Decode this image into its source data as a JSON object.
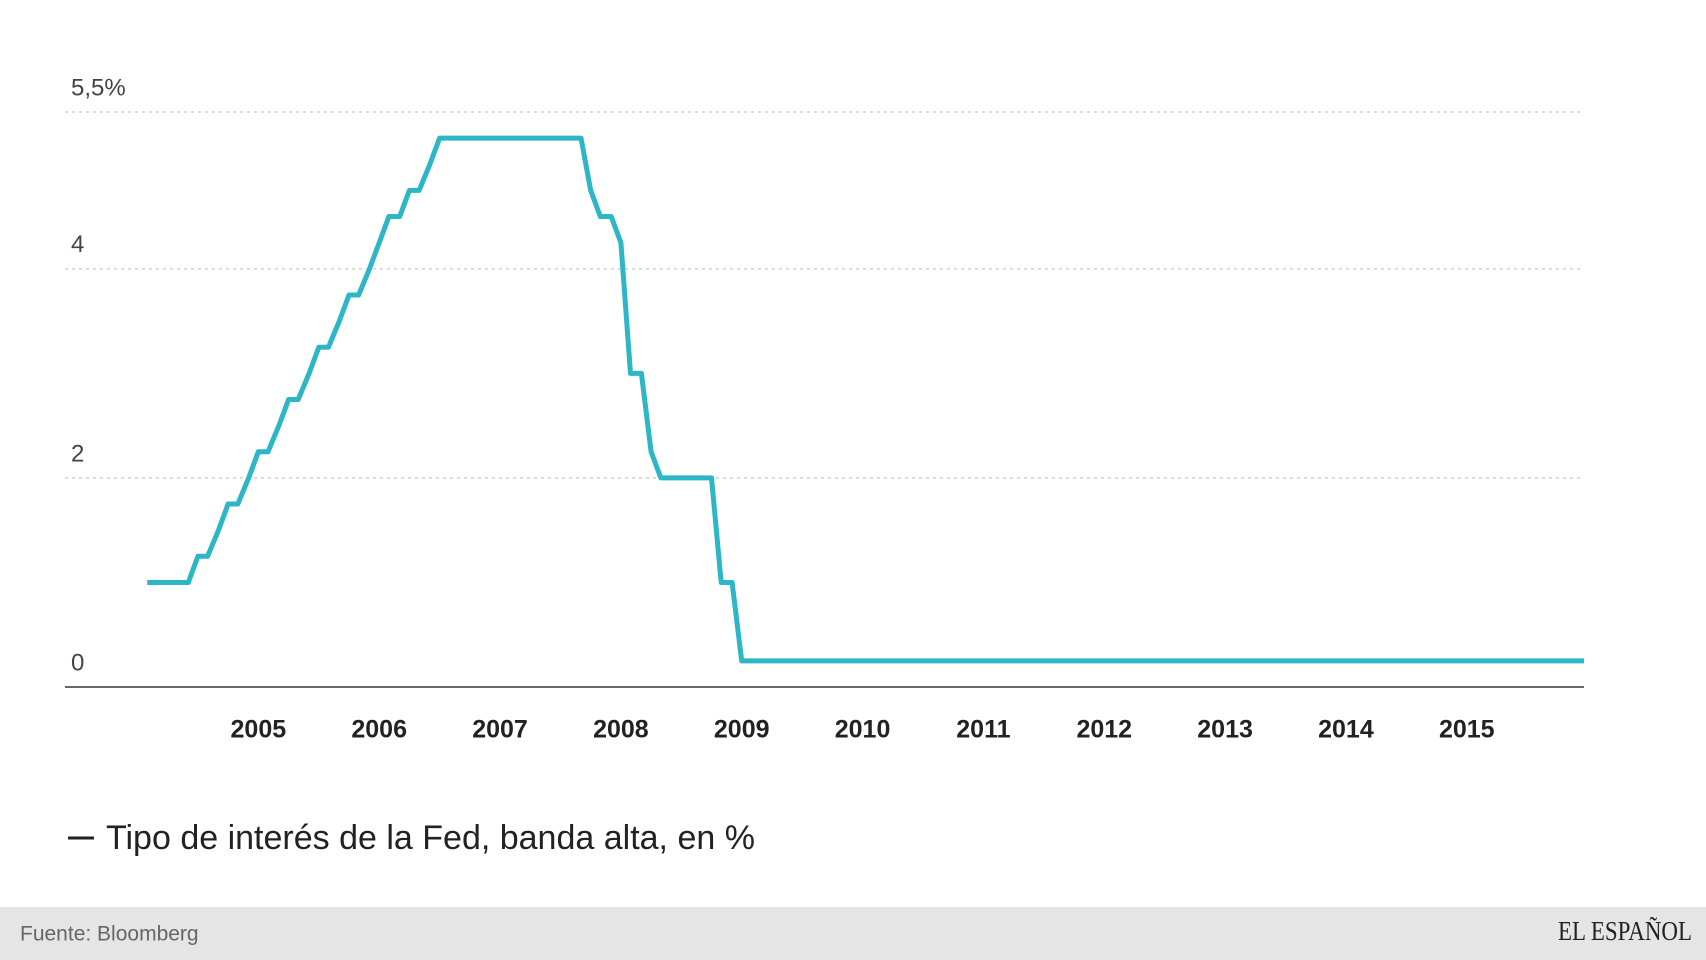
{
  "chart_data": {
    "type": "line",
    "x": [
      2004.08,
      2004.17,
      2004.25,
      2004.33,
      2004.42,
      2004.5,
      2004.58,
      2004.67,
      2004.75,
      2004.83,
      2004.92,
      2005.0,
      2005.08,
      2005.17,
      2005.25,
      2005.33,
      2005.42,
      2005.5,
      2005.58,
      2005.67,
      2005.75,
      2005.83,
      2005.92,
      2006.0,
      2006.08,
      2006.17,
      2006.25,
      2006.33,
      2006.42,
      2006.5,
      2007.67,
      2007.75,
      2007.83,
      2007.92,
      2008.0,
      2008.08,
      2008.17,
      2008.25,
      2008.33,
      2008.75,
      2008.83,
      2008.92,
      2009.0,
      2015.97
    ],
    "series": [
      {
        "name": "Tipo de interés de la Fed, banda alta, en %",
        "color": "#2cb6c6",
        "values": [
          1,
          1,
          1,
          1,
          1,
          1.25,
          1.25,
          1.5,
          1.75,
          1.75,
          2,
          2.25,
          2.25,
          2.5,
          2.75,
          2.75,
          3,
          3.25,
          3.25,
          3.5,
          3.75,
          3.75,
          4,
          4.25,
          4.5,
          4.5,
          4.75,
          4.75,
          5,
          5.25,
          5.25,
          4.75,
          4.5,
          4.5,
          4.25,
          3,
          3,
          2.25,
          2,
          2,
          1,
          1,
          0.25,
          0.25
        ]
      }
    ],
    "xlim": [
      2003.4,
      2015.97
    ],
    "xticks": [
      2005,
      2006,
      2007,
      2008,
      2009,
      2010,
      2011,
      2012,
      2013,
      2014,
      2015
    ],
    "ylim": [
      0,
      5.5
    ],
    "yticks": [
      0,
      2,
      4,
      {
        "value": 5.5,
        "label": "5,5%"
      }
    ],
    "grid": true,
    "source": "Fuente: Bloomberg",
    "brand": "EL ESPAÑOL"
  }
}
